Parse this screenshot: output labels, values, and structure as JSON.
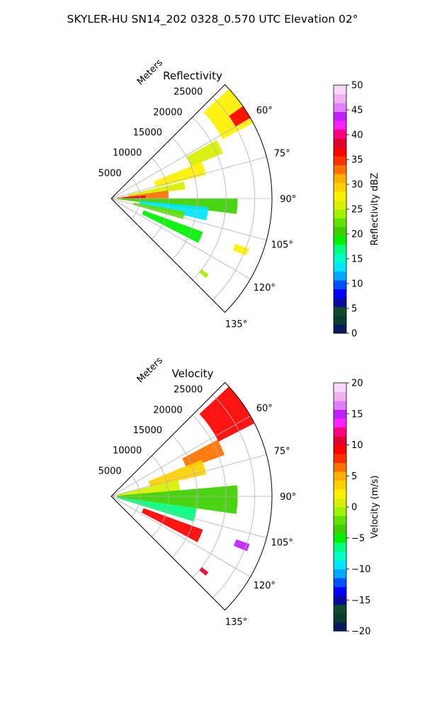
{
  "figure": {
    "title": "SKYLER-HU  SN14_202  0328_0.570 UTC Elevation 02°"
  },
  "chart_data": [
    {
      "type": "heatmap",
      "projection": "polar-sector",
      "title": "Reflectivity",
      "radial_label": "Meters",
      "radial_ticks": [
        "5000",
        "10000",
        "15000",
        "20000",
        "25000"
      ],
      "radial_tick_values": [
        5000,
        10000,
        15000,
        20000,
        25000
      ],
      "rmax": 28000,
      "theta_ticks": [
        "60°",
        "75°",
        "90°",
        "105°",
        "120°",
        "135°"
      ],
      "theta_tick_values": [
        60,
        75,
        90,
        105,
        120,
        135
      ],
      "theta_range": [
        45,
        135
      ],
      "grid": true,
      "colorbar": {
        "label": "Reflectivity dBZ",
        "range": [
          0,
          50
        ],
        "ticks": [
          "0",
          "5",
          "10",
          "15",
          "20",
          "25",
          "30",
          "35",
          "40",
          "45",
          "50"
        ],
        "tick_values": [
          0,
          5,
          10,
          15,
          20,
          25,
          30,
          35,
          40,
          45,
          50
        ],
        "colors": [
          "#0b1a5c",
          "#0b3b2e",
          "#104a2c",
          "#0a0a9c",
          "#0000ff",
          "#0050ff",
          "#00a8ff",
          "#00e6ff",
          "#00ffc8",
          "#00ff80",
          "#00f000",
          "#3cd000",
          "#60e000",
          "#a0f000",
          "#d8f000",
          "#fff000",
          "#ffd000",
          "#ffb000",
          "#ff7000",
          "#ff3000",
          "#ff0000",
          "#e00030",
          "#ff0080",
          "#ff20ff",
          "#c020ff",
          "#e080ff",
          "#f0b0f0",
          "#f8d8f8"
        ]
      },
      "echo_bands": [
        {
          "az_from": 47,
          "az_to": 62,
          "r_from": 22000,
          "r_to": 28000,
          "value": 27
        },
        {
          "az_from": 55,
          "az_to": 60,
          "r_from": 25000,
          "r_to": 28000,
          "value": 37
        },
        {
          "az_from": 61,
          "az_to": 68,
          "r_from": 15000,
          "r_to": 21000,
          "value": 26
        },
        {
          "az_from": 68,
          "az_to": 76,
          "r_from": 8000,
          "r_to": 17000,
          "value": 27
        },
        {
          "az_from": 77,
          "az_to": 83,
          "r_from": 3000,
          "r_to": 13000,
          "value": 26
        },
        {
          "az_from": 82,
          "az_to": 90,
          "r_from": 1000,
          "r_to": 10000,
          "value": 33
        },
        {
          "az_from": 85,
          "az_to": 89,
          "r_from": 2000,
          "r_to": 6000,
          "value": 38
        },
        {
          "az_from": 90,
          "az_to": 97,
          "r_from": 1000,
          "r_to": 22000,
          "value": 21
        },
        {
          "az_from": 95,
          "az_to": 103,
          "r_from": 5000,
          "r_to": 17000,
          "value": 13
        },
        {
          "az_from": 100,
          "az_to": 106,
          "r_from": 4000,
          "r_to": 13000,
          "value": 22
        },
        {
          "az_from": 110,
          "az_to": 117,
          "r_from": 6000,
          "r_to": 17000,
          "value": 19
        },
        {
          "az_from": 110,
          "az_to": 113,
          "r_from": 23000,
          "r_to": 25500,
          "value": 27
        },
        {
          "az_from": 128,
          "az_to": 130,
          "r_from": 20000,
          "r_to": 21500,
          "value": 24
        }
      ]
    },
    {
      "type": "heatmap",
      "projection": "polar-sector",
      "title": "Velocity",
      "radial_label": "Meters",
      "radial_ticks": [
        "5000",
        "10000",
        "15000",
        "20000",
        "25000"
      ],
      "radial_tick_values": [
        5000,
        10000,
        15000,
        20000,
        25000
      ],
      "rmax": 28000,
      "theta_ticks": [
        "60°",
        "75°",
        "90°",
        "105°",
        "120°",
        "135°"
      ],
      "theta_tick_values": [
        60,
        75,
        90,
        105,
        120,
        135
      ],
      "theta_range": [
        45,
        135
      ],
      "grid": true,
      "colorbar": {
        "label": "Velocity (m/s)",
        "range": [
          -20,
          20
        ],
        "ticks": [
          "−20",
          "−15",
          "−10",
          "−5",
          "0",
          "5",
          "10",
          "15",
          "20"
        ],
        "tick_values": [
          -20,
          -15,
          -10,
          -5,
          0,
          5,
          10,
          15,
          20
        ],
        "colors": [
          "#0b1a5c",
          "#0b3b2e",
          "#104a2c",
          "#0a0a9c",
          "#0000ff",
          "#0050ff",
          "#00a8ff",
          "#00e6ff",
          "#00ffc8",
          "#00ff80",
          "#00f000",
          "#3cd000",
          "#60e000",
          "#a0f000",
          "#d8f000",
          "#fff000",
          "#ffd000",
          "#ffb000",
          "#ff7000",
          "#ff3000",
          "#ff0000",
          "#e00030",
          "#ff0080",
          "#ff20ff",
          "#c020ff",
          "#e080ff",
          "#f0b0f0",
          "#f8d8f8"
        ]
      },
      "echo_bands": [
        {
          "az_from": 47,
          "az_to": 63,
          "r_from": 21000,
          "r_to": 28000,
          "value": 9
        },
        {
          "az_from": 62,
          "az_to": 70,
          "r_from": 14000,
          "r_to": 21000,
          "value": 7
        },
        {
          "az_from": 68,
          "az_to": 77,
          "r_from": 7000,
          "r_to": 17000,
          "value": 3
        },
        {
          "az_from": 76,
          "az_to": 86,
          "r_from": 1000,
          "r_to": 12000,
          "value": 0
        },
        {
          "az_from": 85,
          "az_to": 98,
          "r_from": 1000,
          "r_to": 22000,
          "value": -3
        },
        {
          "az_from": 98,
          "az_to": 107,
          "r_from": 1000,
          "r_to": 15000,
          "value": -7
        },
        {
          "az_from": 110,
          "az_to": 118,
          "r_from": 6000,
          "r_to": 17000,
          "value": 9
        },
        {
          "az_from": 109,
          "az_to": 112,
          "r_from": 23000,
          "r_to": 25500,
          "value": 15
        },
        {
          "az_from": 128,
          "az_to": 130,
          "r_from": 20000,
          "r_to": 21500,
          "value": 10
        }
      ]
    }
  ]
}
